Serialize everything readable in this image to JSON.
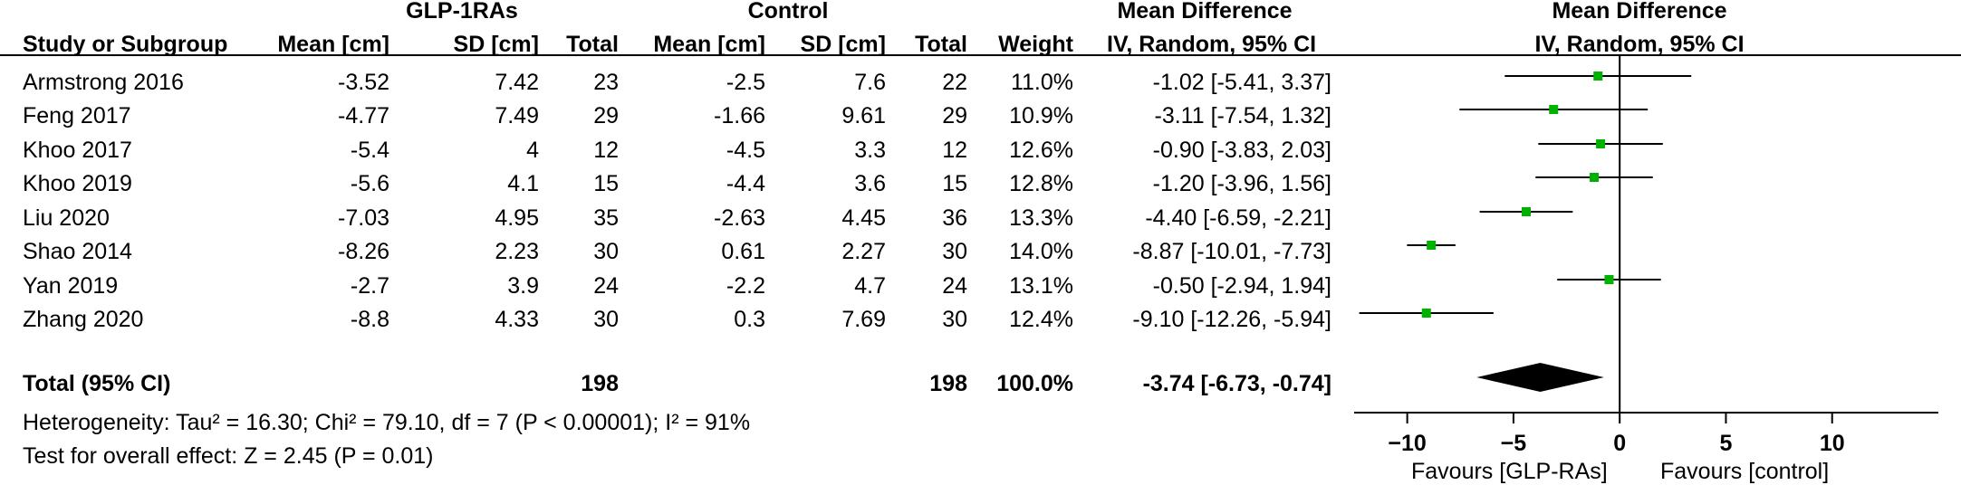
{
  "groups": {
    "experimental": "GLP-1RAs",
    "control": "Control",
    "md_title_table": "Mean Difference",
    "md_title_plot": "Mean Difference"
  },
  "columns": {
    "study": "Study or Subgroup",
    "exp_mean": "Mean [cm]",
    "exp_sd": "SD [cm]",
    "exp_total": "Total",
    "ctl_mean": "Mean [cm]",
    "ctl_sd": "SD [cm]",
    "ctl_total": "Total",
    "weight": "Weight",
    "md_method": "IV, Random, 95% CI",
    "plot_method": "IV, Random, 95% CI"
  },
  "rows": [
    {
      "study": "Armstrong 2016",
      "exp_mean": "-3.52",
      "exp_sd": "7.42",
      "exp_total": "23",
      "ctl_mean": "-2.5",
      "ctl_sd": "7.6",
      "ctl_total": "22",
      "weight": "11.0%",
      "ci": "-1.02 [-5.41, 3.37]"
    },
    {
      "study": "Feng 2017",
      "exp_mean": "-4.77",
      "exp_sd": "7.49",
      "exp_total": "29",
      "ctl_mean": "-1.66",
      "ctl_sd": "9.61",
      "ctl_total": "29",
      "weight": "10.9%",
      "ci": "-3.11 [-7.54, 1.32]"
    },
    {
      "study": "Khoo 2017",
      "exp_mean": "-5.4",
      "exp_sd": "4",
      "exp_total": "12",
      "ctl_mean": "-4.5",
      "ctl_sd": "3.3",
      "ctl_total": "12",
      "weight": "12.6%",
      "ci": "-0.90 [-3.83, 2.03]"
    },
    {
      "study": "Khoo 2019",
      "exp_mean": "-5.6",
      "exp_sd": "4.1",
      "exp_total": "15",
      "ctl_mean": "-4.4",
      "ctl_sd": "3.6",
      "ctl_total": "15",
      "weight": "12.8%",
      "ci": "-1.20 [-3.96, 1.56]"
    },
    {
      "study": "Liu 2020",
      "exp_mean": "-7.03",
      "exp_sd": "4.95",
      "exp_total": "35",
      "ctl_mean": "-2.63",
      "ctl_sd": "4.45",
      "ctl_total": "36",
      "weight": "13.3%",
      "ci": "-4.40 [-6.59, -2.21]"
    },
    {
      "study": "Shao 2014",
      "exp_mean": "-8.26",
      "exp_sd": "2.23",
      "exp_total": "30",
      "ctl_mean": "0.61",
      "ctl_sd": "2.27",
      "ctl_total": "30",
      "weight": "14.0%",
      "ci": "-8.87 [-10.01, -7.73]"
    },
    {
      "study": "Yan 2019",
      "exp_mean": "-2.7",
      "exp_sd": "3.9",
      "exp_total": "24",
      "ctl_mean": "-2.2",
      "ctl_sd": "4.7",
      "ctl_total": "24",
      "weight": "13.1%",
      "ci": "-0.50 [-2.94, 1.94]"
    },
    {
      "study": "Zhang 2020",
      "exp_mean": "-8.8",
      "exp_sd": "4.33",
      "exp_total": "30",
      "ctl_mean": "0.3",
      "ctl_sd": "7.69",
      "ctl_total": "30",
      "weight": "12.4%",
      "ci": "-9.10 [-12.26, -5.94]"
    }
  ],
  "total": {
    "label": "Total (95% CI)",
    "exp_total": "198",
    "ctl_total": "198",
    "weight": "100.0%",
    "ci": "-3.74 [-6.73, -0.74]"
  },
  "heterogeneity": "Heterogeneity: Tau² = 16.30; Chi² = 79.10, df = 7 (P < 0.00001); I² = 91%",
  "overall_effect": "Test for overall effect: Z = 2.45 (P = 0.01)",
  "favours": {
    "left": "Favours [GLP-RAs]",
    "right": "Favours [control]"
  },
  "colors": {
    "marker": "#00b200",
    "line": "#000000"
  },
  "chart_data": {
    "type": "forest",
    "title": "Mean Difference",
    "subtitle": "IV, Random, 95% CI",
    "xlim": [
      -12.5,
      15
    ],
    "ticks": [
      -10,
      -5,
      0,
      5,
      10
    ],
    "points": [
      {
        "study": "Armstrong 2016",
        "md": -1.02,
        "lo": -5.41,
        "hi": 3.37,
        "weight": 11.0
      },
      {
        "study": "Feng 2017",
        "md": -3.11,
        "lo": -7.54,
        "hi": 1.32,
        "weight": 10.9
      },
      {
        "study": "Khoo 2017",
        "md": -0.9,
        "lo": -3.83,
        "hi": 2.03,
        "weight": 12.6
      },
      {
        "study": "Khoo 2019",
        "md": -1.2,
        "lo": -3.96,
        "hi": 1.56,
        "weight": 12.8
      },
      {
        "study": "Liu 2020",
        "md": -4.4,
        "lo": -6.59,
        "hi": -2.21,
        "weight": 13.3
      },
      {
        "study": "Shao 2014",
        "md": -8.87,
        "lo": -10.01,
        "hi": -7.73,
        "weight": 14.0
      },
      {
        "study": "Yan 2019",
        "md": -0.5,
        "lo": -2.94,
        "hi": 1.94,
        "weight": 13.1
      },
      {
        "study": "Zhang 2020",
        "md": -9.1,
        "lo": -12.26,
        "hi": -5.94,
        "weight": 12.4
      }
    ],
    "pooled": {
      "md": -3.74,
      "lo": -6.73,
      "hi": -0.74
    }
  }
}
